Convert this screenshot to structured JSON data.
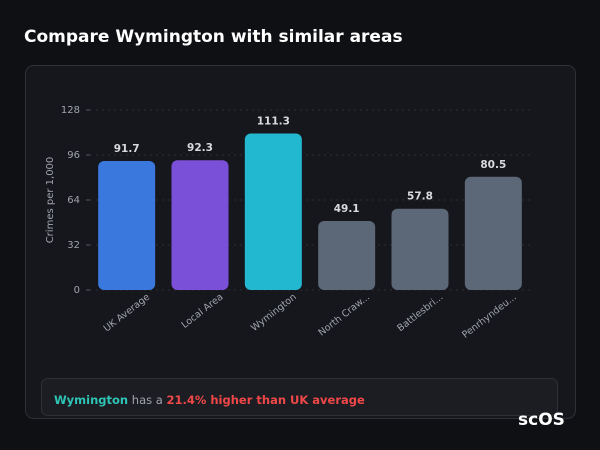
{
  "chart_data": {
    "type": "bar",
    "title": "Compare Wymington with similar areas",
    "y_label": "Crimes per 1,000",
    "categories": [
      "UK Average",
      "Local Area",
      "Wymington",
      "North Craw...",
      "Battlesbri...",
      "Penrhyndeu..."
    ],
    "values": [
      91.7,
      92.3,
      111.3,
      49.1,
      57.8,
      80.5
    ],
    "colors": [
      "#3b78dd",
      "#7b50d8",
      "#22b8cf",
      "#5c6778",
      "#5c6778",
      "#5c6778"
    ],
    "ylim": [
      0,
      128
    ],
    "yticks": [
      0,
      32,
      64,
      96,
      128
    ],
    "grid": true,
    "summary": {
      "area": "Wymington",
      "text": "has a",
      "highlight": "21.4% higher than UK average"
    },
    "logo": "scOS"
  }
}
